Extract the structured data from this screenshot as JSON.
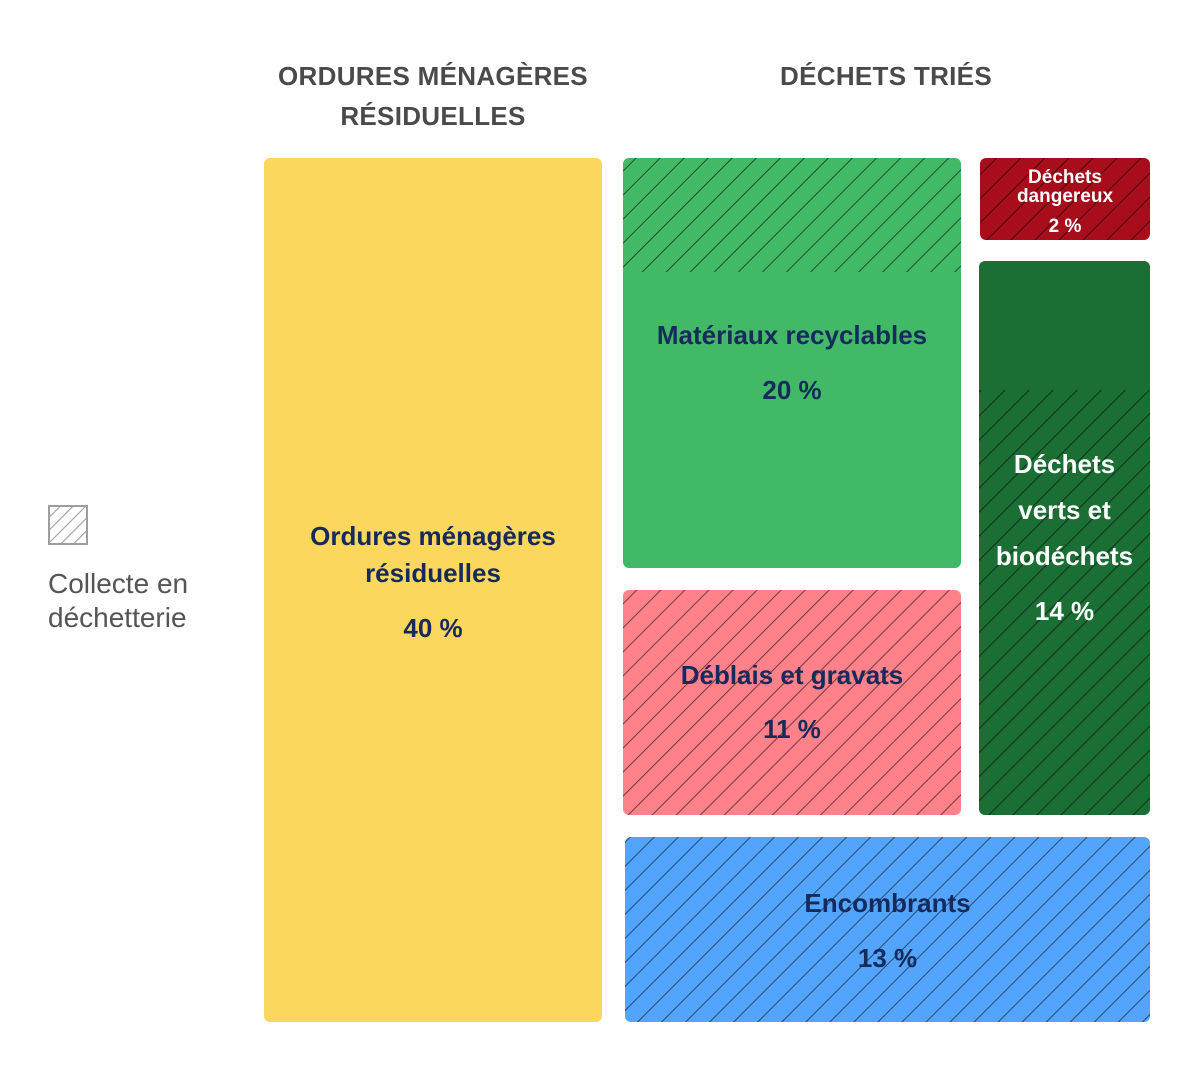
{
  "headers": {
    "omr": "ORDURES MÉNAGÈRES RÉSIDUELLES",
    "dt": "DÉCHETS TRIÉS"
  },
  "legend": {
    "label": "Collecte en déchetterie",
    "swatch_color": "#9e9e9e"
  },
  "chart_data": {
    "type": "treemap",
    "groups": [
      "ORDURES MÉNAGÈRES RÉSIDUELLES",
      "DÉCHETS TRIÉS"
    ],
    "items": [
      {
        "label": "Ordures ménagères résiduelles",
        "value": 40,
        "value_label": "40 %",
        "group": "ORDURES MÉNAGÈRES RÉSIDUELLES",
        "color": "#fcd75e",
        "text_color": "#172a5c",
        "collecte_dechetterie": "none"
      },
      {
        "label": "Matériaux recyclables",
        "value": 20,
        "value_label": "20 %",
        "group": "DÉCHETS TRIÉS",
        "color": "#41b967",
        "text_color": "#172a5c",
        "collecte_dechetterie": "partial"
      },
      {
        "label": "Déchets dangereux",
        "value": 2,
        "value_label": "2 %",
        "group": "DÉCHETS TRIÉS",
        "color": "#a80d1b",
        "text_color": "#ffffff",
        "collecte_dechetterie": "full"
      },
      {
        "label": "Déchets verts et biodéchets",
        "value": 14,
        "value_label": "14 %",
        "group": "DÉCHETS TRIÉS",
        "color": "#1b6e34",
        "text_color": "#ffffff",
        "collecte_dechetterie": "partial"
      },
      {
        "label": "Déblais et gravats",
        "value": 11,
        "value_label": "11 %",
        "group": "DÉCHETS TRIÉS",
        "color": "#ff8189",
        "text_color": "#172a5c",
        "collecte_dechetterie": "full"
      },
      {
        "label": "Encombrants",
        "value": 13,
        "value_label": "13 %",
        "group": "DÉCHETS TRIÉS",
        "color": "#53a4fd",
        "text_color": "#172a5c",
        "collecte_dechetterie": "full"
      }
    ]
  }
}
